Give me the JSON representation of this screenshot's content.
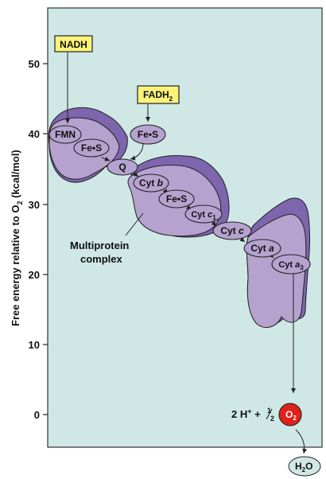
{
  "axis": {
    "label_main": "Free energy relative to O",
    "label_sub": "2",
    "label_unit": " (kcal/mol)",
    "ticks": [
      "50",
      "40",
      "30",
      "20",
      "10",
      "0"
    ]
  },
  "donors": {
    "nadh": "NADH",
    "fadh_main": "FADH",
    "fadh_sub": "2"
  },
  "carriers": {
    "fmn": "FMN",
    "fes1": "Fe•S",
    "fes_fadh": "Fe•S",
    "q": "Q",
    "cytb_main": "Cyt ",
    "cytb_italic": "b",
    "fes2": "Fe•S",
    "cytc1_main": "Cyt ",
    "cytc1_italic": "c",
    "cytc1_sub": "1",
    "cytc_main": "Cyt ",
    "cytc_italic": "c",
    "cyta_main": "Cyt ",
    "cyta_italic": "a",
    "cyta3_main": "Cyt ",
    "cyta3_italic": "a",
    "cyta3_sub": "3"
  },
  "complex_label": [
    "Multiprotein",
    "complex"
  ],
  "reaction": {
    "lhs_main": "2 H",
    "lhs_sup": "+",
    "lhs_plus": " + ",
    "half_num": "1",
    "half_den": "2",
    "o_main": "O",
    "o_sub": "2",
    "water_main": "H",
    "water_sub": "2",
    "water_o": "O"
  },
  "colors": {
    "panel": "#cfe8e6",
    "complex": "#b6a2cf",
    "complex_dark": "#7d66ae",
    "label_box": "#fbf27a",
    "o2": "#e0211c"
  }
}
